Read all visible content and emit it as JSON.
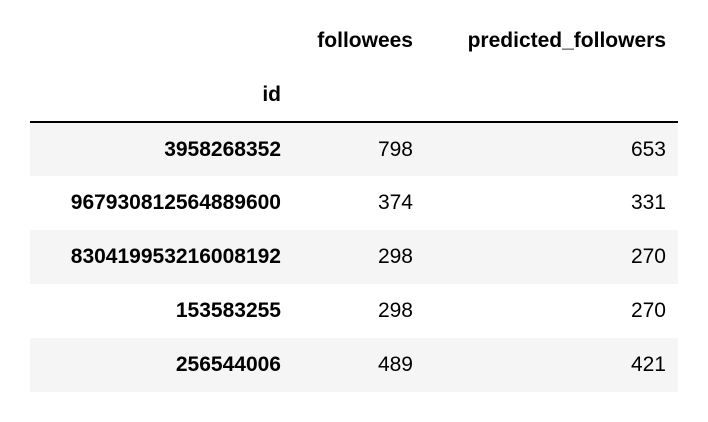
{
  "table": {
    "columns": [
      "followees",
      "predicted_followers"
    ],
    "index_name": "id",
    "rows": [
      {
        "id": "3958268352",
        "followees": "798",
        "predicted_followers": "653"
      },
      {
        "id": "967930812564889600",
        "followees": "374",
        "predicted_followers": "331"
      },
      {
        "id": "830419953216008192",
        "followees": "298",
        "predicted_followers": "270"
      },
      {
        "id": "153583255",
        "followees": "298",
        "predicted_followers": "270"
      },
      {
        "id": "256544006",
        "followees": "489",
        "predicted_followers": "421"
      }
    ]
  }
}
